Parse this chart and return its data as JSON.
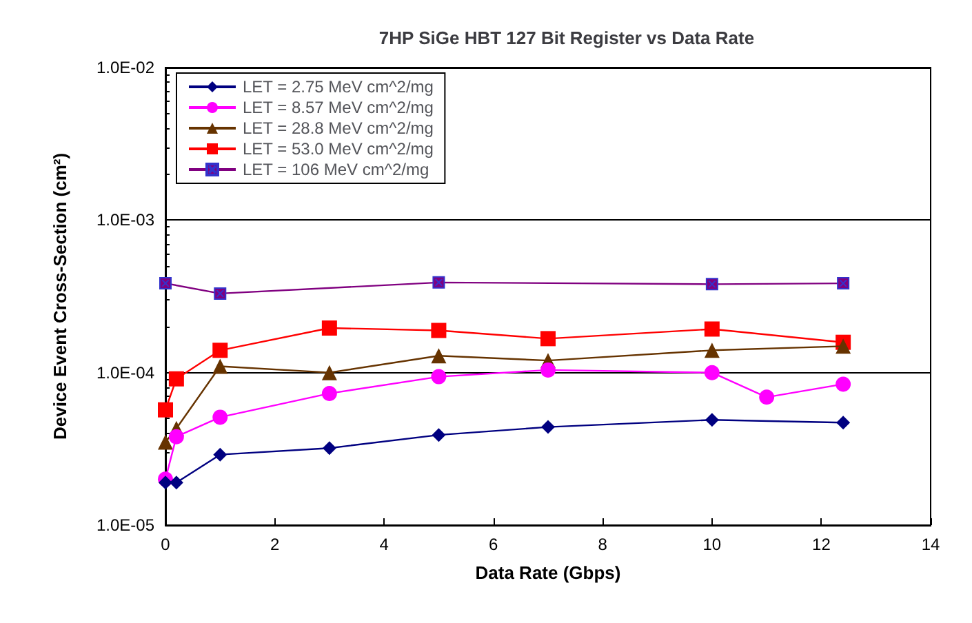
{
  "chart_data": {
    "type": "line",
    "title": "7HP SiGe HBT 127 Bit Register vs Data Rate",
    "xlabel": "Data Rate (Gbps)",
    "ylabel": "Device Event Cross-Section (cm²)",
    "log": "y",
    "grid": "y",
    "legend": "top left",
    "xlim": [
      0,
      14
    ],
    "xticks": [
      0,
      2,
      4,
      6,
      8,
      10,
      12,
      14
    ],
    "ylim": [
      1e-05,
      0.01
    ],
    "yticks": [
      {
        "value": 1e-05,
        "label": "1.0E-05"
      },
      {
        "value": 0.0001,
        "label": "1.0E-04"
      },
      {
        "value": 0.001,
        "label": "1.0E-03"
      },
      {
        "value": 0.01,
        "label": "1.0E-02"
      }
    ],
    "series": [
      {
        "name": "LET = 2.75 MeV cm^2/mg",
        "color": "#000080",
        "marker": "diamond",
        "x": [
          0,
          0.2,
          1,
          3,
          5,
          7,
          10,
          12.4
        ],
        "values": [
          1.9e-05,
          1.9e-05,
          2.9e-05,
          3.2e-05,
          3.9e-05,
          4.4e-05,
          4.9e-05,
          4.7e-05
        ]
      },
      {
        "name": "LET = 8.57 MeV cm^2/mg",
        "color": "#ff00ff",
        "marker": "circle",
        "x": [
          0,
          0.2,
          1,
          3,
          5,
          7,
          10,
          11,
          12.4
        ],
        "values": [
          2e-05,
          3.8e-05,
          5.1e-05,
          7.3e-05,
          9.4e-05,
          0.000104,
          0.0001,
          6.9e-05,
          8.4e-05
        ]
      },
      {
        "name": "LET = 28.8 MeV cm^2/mg",
        "color": "#663300",
        "marker": "triangle",
        "x": [
          0,
          0.2,
          1,
          3,
          5,
          7,
          10,
          12.4
        ],
        "values": [
          3.5e-05,
          4.3e-05,
          0.00011,
          0.0001,
          0.000129,
          0.00012,
          0.00014,
          0.000149
        ]
      },
      {
        "name": "LET = 53.0 MeV cm^2/mg",
        "color": "#ff0000",
        "marker": "square",
        "x": [
          0,
          0.2,
          1,
          3,
          5,
          7,
          10,
          12.4
        ],
        "values": [
          5.7e-05,
          9.1e-05,
          0.00014,
          0.000196,
          0.000189,
          0.000167,
          0.000193,
          0.000158
        ]
      },
      {
        "name": "LET = 106 MeV cm^2/mg",
        "color": "#800080",
        "marker": "cross",
        "x": [
          0,
          1,
          5,
          10,
          12.4
        ],
        "values": [
          0.000385,
          0.00033,
          0.00039,
          0.00038,
          0.000385
        ]
      }
    ]
  }
}
